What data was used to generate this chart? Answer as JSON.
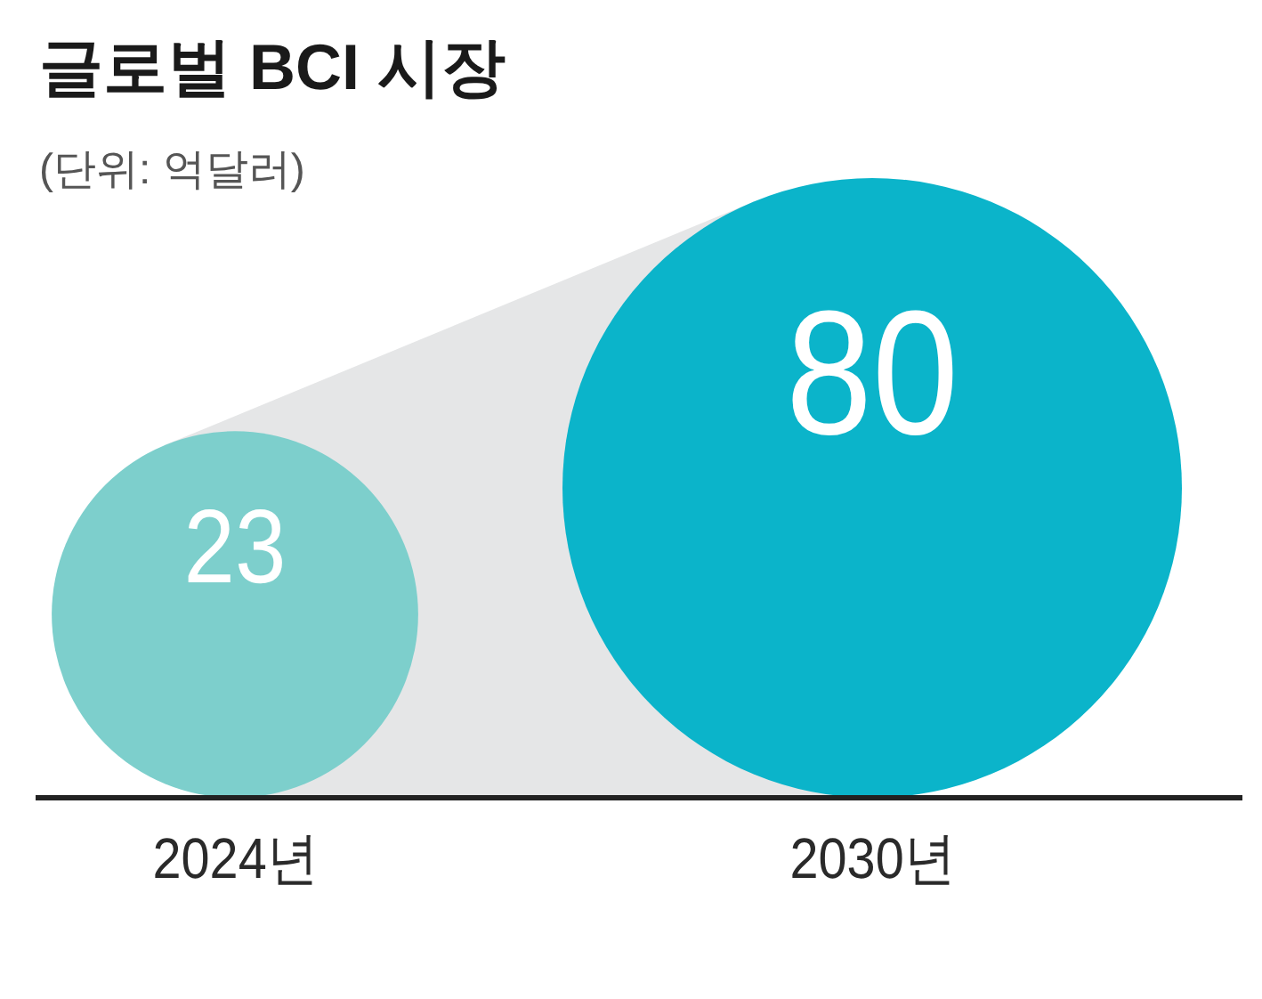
{
  "chart_data": {
    "type": "bubble",
    "title": "글로벌 BCI 시장",
    "subtitle": "(단위: 억달러)",
    "categories": [
      "2024년",
      "2030년"
    ],
    "values": [
      23,
      80
    ],
    "sizes": [
      0.35,
      1
    ],
    "colors": [
      "#7dcfcc",
      "#0bb4ca"
    ],
    "data_labels": true
  }
}
